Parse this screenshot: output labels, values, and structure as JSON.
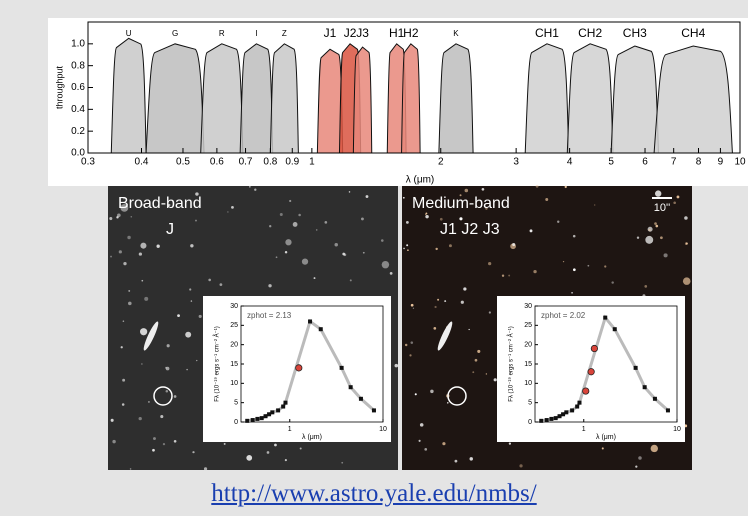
{
  "chart": {
    "type": "area",
    "xscale": "log",
    "ylabel": "throughput",
    "xlabel": "λ (μm)",
    "xlim": [
      0.3,
      10
    ],
    "ylim": [
      0,
      1.2
    ],
    "yticks": [
      {
        "value": 0,
        "label": "0.0"
      },
      0.2,
      0.4,
      0.6,
      0.8,
      {
        "value": 1,
        "label": "1.0"
      }
    ],
    "xticks": [
      0.3,
      0.4,
      0.5,
      0.6,
      0.7,
      0.8,
      0.9,
      1,
      2,
      3,
      4,
      5,
      6,
      7,
      8,
      9,
      10
    ],
    "filters": [
      {
        "name": "U",
        "band": [
          0.34,
          0.41
        ],
        "peak": 1.05,
        "color": "#c8c8c8"
      },
      {
        "name": "G",
        "band": [
          0.41,
          0.56
        ],
        "peak": 1.0,
        "color": "#bdbdbd"
      },
      {
        "name": "R",
        "band": [
          0.55,
          0.69
        ],
        "peak": 1.0,
        "color": "#c8c8c8"
      },
      {
        "name": "I",
        "band": [
          0.68,
          0.81
        ],
        "peak": 1.0,
        "color": "#bdbdbd"
      },
      {
        "name": "Z",
        "band": [
          0.8,
          0.93
        ],
        "peak": 1.0,
        "color": "#c8c8c8"
      },
      {
        "name": "J1",
        "band": [
          1.03,
          1.18
        ],
        "peak": 0.95,
        "color": "#e8877a"
      },
      {
        "name": "J2",
        "band": [
          1.16,
          1.3
        ],
        "peak": 1.0,
        "color": "#d9533f"
      },
      {
        "name": "J3",
        "band": [
          1.25,
          1.38
        ],
        "peak": 0.97,
        "color": "#e8877a"
      },
      {
        "name": "H1",
        "band": [
          1.5,
          1.66
        ],
        "peak": 1.0,
        "color": "#e8877a"
      },
      {
        "name": "H2",
        "band": [
          1.62,
          1.79
        ],
        "peak": 1.0,
        "color": "#e8877a"
      },
      {
        "name": "K",
        "band": [
          1.98,
          2.38
        ],
        "peak": 1.0,
        "color": "#bdbdbd"
      },
      {
        "name": "CH1",
        "band": [
          3.15,
          3.98
        ],
        "peak": 1.0,
        "color": "#d0d0d0"
      },
      {
        "name": "CH2",
        "band": [
          3.95,
          5.05
        ],
        "peak": 1.0,
        "color": "#d0d0d0"
      },
      {
        "name": "CH3",
        "band": [
          5.0,
          6.45
        ],
        "peak": 0.98,
        "color": "#d0d0d0"
      },
      {
        "name": "CH4",
        "band": [
          6.3,
          9.6
        ],
        "peak": 0.98,
        "color": "#d0d0d0"
      }
    ]
  },
  "images": [
    {
      "title": "Broad-band",
      "filters": "J",
      "zphot": "zphot = 2.13",
      "inset": {
        "xlabel": "λ (μm)",
        "ylabel": "Fλ (10⁻¹⁹ ergs s⁻¹ cm⁻² Å⁻¹)",
        "xlim": [
          0.3,
          10
        ],
        "ylim": [
          0,
          30
        ],
        "xticks": [
          1,
          10
        ],
        "yticks": [
          0,
          5,
          10,
          15,
          20,
          25,
          30
        ],
        "points": {
          "x": [
            0.35,
            0.4,
            0.45,
            0.5,
            0.55,
            0.6,
            0.65,
            0.75,
            0.85,
            0.9,
            1.65,
            2.15,
            3.6,
            4.5,
            5.8,
            8
          ],
          "y": [
            0.3,
            0.5,
            0.8,
            1,
            1.5,
            2,
            2.5,
            3,
            4,
            5,
            26,
            24,
            14,
            9,
            6,
            3
          ]
        },
        "highlight": {
          "x": [
            1.25
          ],
          "y": [
            14
          ]
        }
      }
    },
    {
      "title": "Medium-band",
      "filters": "J1 J2 J3",
      "zphot": "zphot = 2.02",
      "scale": "10''",
      "inset": {
        "xlabel": "λ (μm)",
        "ylabel": "Fλ (10⁻¹⁹ ergs s⁻¹ cm⁻² Å⁻¹)",
        "xlim": [
          0.3,
          10
        ],
        "ylim": [
          0,
          30
        ],
        "xticks": [
          1,
          10
        ],
        "yticks": [
          0,
          5,
          10,
          15,
          20,
          25,
          30
        ],
        "points": {
          "x": [
            0.35,
            0.4,
            0.45,
            0.5,
            0.55,
            0.6,
            0.65,
            0.75,
            0.85,
            0.9,
            1.7,
            2.15,
            3.6,
            4.5,
            5.8,
            8
          ],
          "y": [
            0.3,
            0.5,
            0.8,
            1,
            1.5,
            2,
            2.5,
            3,
            4,
            5,
            27,
            24,
            14,
            9,
            6,
            3
          ]
        },
        "highlight": {
          "x": [
            1.05,
            1.2,
            1.3
          ],
          "y": [
            8,
            13,
            19
          ]
        }
      }
    }
  ],
  "link": "http://www.astro.yale.edu/nmbs/"
}
